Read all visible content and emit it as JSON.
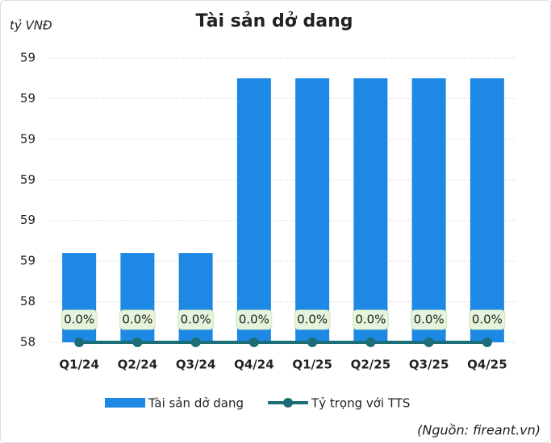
{
  "chart_data": {
    "type": "bar",
    "title": "Tài sản dở dang",
    "y_axis_label": "tỷ VNĐ",
    "source": "(Nguồn: fireant.vn)",
    "categories": [
      "Q1/24",
      "Q2/24",
      "Q3/24",
      "Q4/24",
      "Q1/25",
      "Q2/25",
      "Q3/25",
      "Q4/25"
    ],
    "series": [
      {
        "name": "Tài sản dở dang",
        "type": "bar",
        "color": "#1e88e5",
        "values": [
          58.52,
          58.52,
          58.52,
          58.95,
          58.95,
          58.95,
          58.95,
          58.95
        ]
      },
      {
        "name": "Tỷ trọng với TTS",
        "type": "line",
        "axis": "y2",
        "color": "#1b6e78",
        "values": [
          0,
          0,
          0,
          0,
          0,
          0,
          0,
          0
        ],
        "value_labels": [
          "0.0%",
          "0.0%",
          "0.0%",
          "0.0%",
          "0.0%",
          "0.0%",
          "0.0%",
          "0.0%"
        ]
      }
    ],
    "ylim": [
      58.3,
      59.0
    ],
    "yticks": [
      {
        "value": 58.3,
        "label": "58"
      },
      {
        "value": 58.4,
        "label": "58"
      },
      {
        "value": 58.5,
        "label": "59"
      },
      {
        "value": 58.6,
        "label": "59"
      },
      {
        "value": 58.7,
        "label": "59"
      },
      {
        "value": 58.8,
        "label": "59"
      },
      {
        "value": 58.9,
        "label": "59"
      },
      {
        "value": 59.0,
        "label": "59"
      }
    ],
    "y2lim": [
      0,
      100
    ],
    "grid": true,
    "legend": "bottom"
  }
}
